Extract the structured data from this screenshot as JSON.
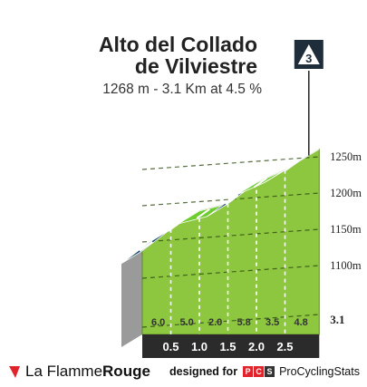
{
  "title_line1": "Alto del Collado",
  "title_line2": "de Vilviestre",
  "subtitle": "1268 m - 3.1 Km at 4.5 %",
  "category_badge": "3",
  "chart_data": {
    "type": "area",
    "title": "Alto del Collado de Vilviestre",
    "subtitle": "1268 m - 3.1 Km at 4.5 %",
    "x_unit": "km",
    "y_unit": "m",
    "xlim": [
      0,
      3.1
    ],
    "ylim": [
      1050,
      1268
    ],
    "x_ticks": [
      "0.5",
      "1.0",
      "1.5",
      "2.0",
      "2.5"
    ],
    "end_label": "3.1",
    "y_ticks": [
      "1100m",
      "1150m",
      "1200m",
      "1250m"
    ],
    "summit_m": 1268,
    "segments": [
      {
        "from_km": 0.0,
        "to_km": 0.5,
        "gradient": "6.0",
        "color": "#1b4f72"
      },
      {
        "from_km": 0.5,
        "to_km": 1.0,
        "gradient": "5.0",
        "color": "#1b4f72"
      },
      {
        "from_km": 1.0,
        "to_km": 1.5,
        "gradient": "2.0",
        "color": "#6ecc2e"
      },
      {
        "from_km": 1.5,
        "to_km": 2.0,
        "gradient": "5.8",
        "color": "#1b4f72"
      },
      {
        "from_km": 2.0,
        "to_km": 2.5,
        "gradient": "3.5",
        "color": "#6ecc2e"
      },
      {
        "from_km": 2.5,
        "to_km": 3.1,
        "gradient": "4.8",
        "color": "#1b4f72"
      }
    ]
  },
  "footer": {
    "brand_part1": "La Flamme",
    "brand_part2": "Rouge",
    "designed_for": "designed for",
    "pcs_letters": [
      "P",
      "C",
      "S"
    ],
    "pcs_name": "ProCyclingStats"
  },
  "colors": {
    "face": "#8dc63f",
    "road_dark": "#1b4f72",
    "road_light": "#6ecc2e",
    "side": "#9a9a9a",
    "base": "#2b2b2b",
    "brand_red": "#e0242b"
  }
}
